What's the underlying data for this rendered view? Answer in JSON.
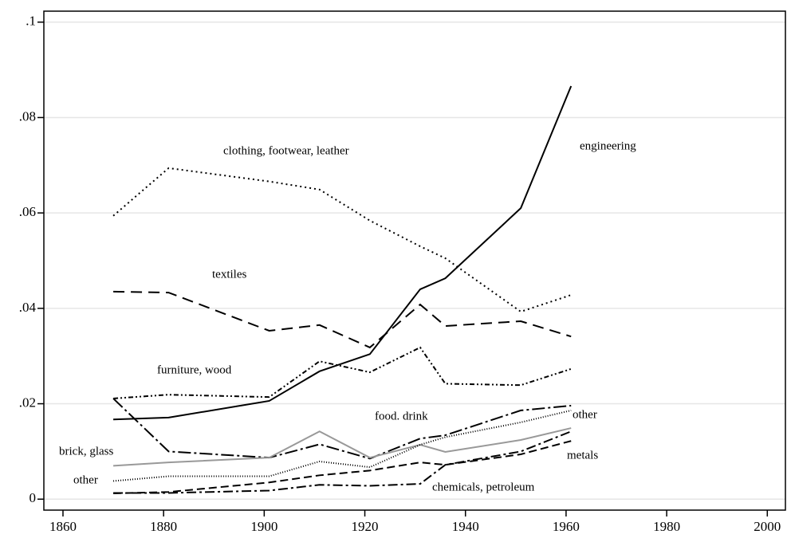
{
  "chart_data": {
    "type": "line",
    "x": [
      1870,
      1881,
      1901,
      1911,
      1921,
      1931,
      1936,
      1951,
      1961
    ],
    "series": [
      {
        "name": "engineering",
        "color": "#000000",
        "dash": "none",
        "values": [
          0.0167,
          0.0171,
          0.0206,
          0.0268,
          0.0304,
          0.044,
          0.0463,
          0.061,
          0.0866
        ]
      },
      {
        "name": "clothing, footwear, leather",
        "color": "#000000",
        "dash": "2,4",
        "values": [
          0.0594,
          0.0694,
          0.0666,
          0.0649,
          0.0584,
          0.053,
          0.0505,
          0.0393,
          0.0428
        ]
      },
      {
        "name": "textiles",
        "color": "#000000",
        "dash": "14,8",
        "values": [
          0.0435,
          0.0433,
          0.0353,
          0.0365,
          0.0318,
          0.0408,
          0.0363,
          0.0373,
          0.0341
        ]
      },
      {
        "name": "furniture, wood",
        "color": "#000000",
        "dash": "6,3,2,3,2,3",
        "values": [
          0.0211,
          0.0219,
          0.0214,
          0.0289,
          0.0266,
          0.0318,
          0.0242,
          0.0239,
          0.0273
        ]
      },
      {
        "name": "food. drink",
        "color": "#000000",
        "dash": "16,4,3,4",
        "values": [
          0.0211,
          0.01,
          0.0087,
          0.0115,
          0.0085,
          0.0127,
          0.0134,
          0.0186,
          0.0196
        ]
      },
      {
        "name": "brick, glass",
        "color": "#999999",
        "dash": "none",
        "values": [
          0.007,
          0.0077,
          0.0087,
          0.0142,
          0.0087,
          0.0114,
          0.0099,
          0.0124,
          0.0149
        ]
      },
      {
        "name": "other",
        "color": "#000000",
        "dash": "1,2",
        "values": [
          0.0038,
          0.0048,
          0.0048,
          0.0079,
          0.0067,
          0.0114,
          0.013,
          0.0161,
          0.0186
        ]
      },
      {
        "name": "metals",
        "color": "#000000",
        "dash": "10,5",
        "values": [
          0.0012,
          0.0015,
          0.0035,
          0.005,
          0.006,
          0.0077,
          0.0072,
          0.0094,
          0.0122
        ]
      },
      {
        "name": "chemicals, petroleum",
        "color": "#000000",
        "dash": "12,4,3,4",
        "values": [
          0.0013,
          0.0013,
          0.0018,
          0.003,
          0.0028,
          0.0032,
          0.0072,
          0.01,
          0.0142
        ]
      }
    ],
    "xlim": [
      1856.2,
      2003.6
    ],
    "xticks": [
      1860,
      1880,
      1900,
      1920,
      1940,
      1960,
      1980,
      2000
    ],
    "ylim": [
      -0.0023,
      0.1023
    ],
    "yticks": [
      0,
      {
        "value": 0.02,
        "label": ".02"
      },
      {
        "value": 0.04,
        "label": ".04"
      },
      {
        "value": 0.06,
        "label": ".06"
      },
      {
        "value": 0.08,
        "label": ".08"
      },
      {
        "value": 0.1,
        "label": ".1"
      }
    ],
    "grid": true
  }
}
